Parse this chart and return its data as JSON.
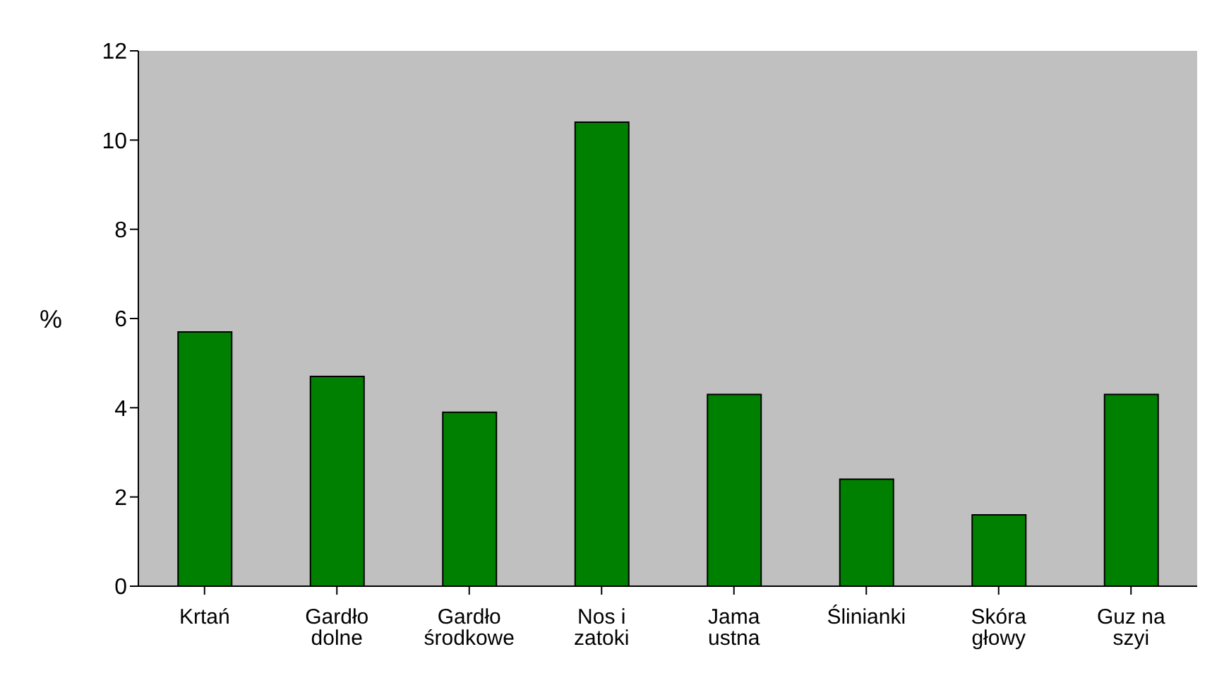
{
  "chart_data": {
    "type": "bar",
    "ylabel": "%",
    "categories": [
      "Krtań",
      "Gardło dolne",
      "Gardło środkowe",
      "Nos i zatoki",
      "Jama ustna",
      "Ślinianki",
      "Skóra głowy",
      "Guz na szyi"
    ],
    "values": [
      5.7,
      4.7,
      3.9,
      10.4,
      4.3,
      2.4,
      1.6,
      4.3
    ],
    "color": "#008000",
    "ylim": [
      0,
      12
    ],
    "yticks": [
      0,
      2,
      4,
      6,
      8,
      10,
      12
    ],
    "grid": false
  }
}
